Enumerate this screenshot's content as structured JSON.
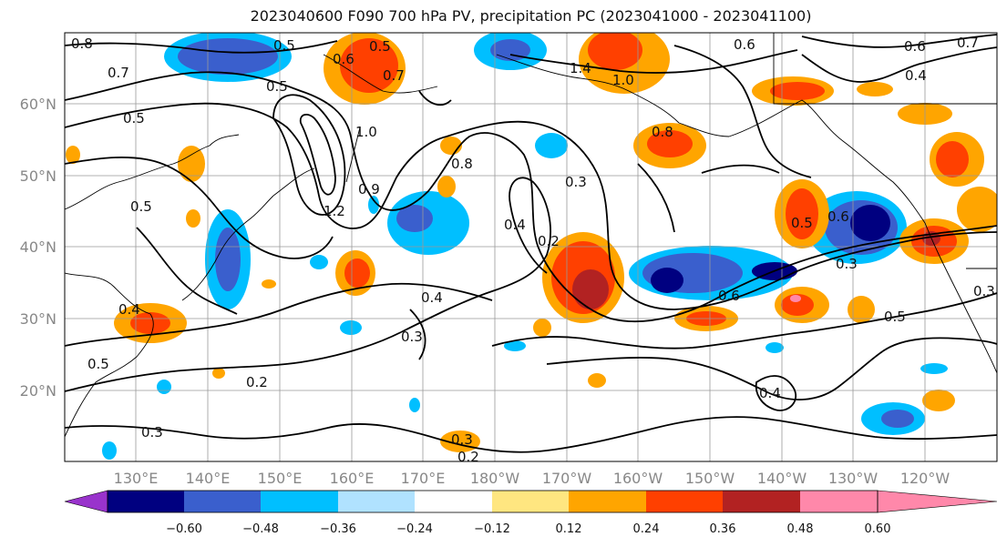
{
  "title": "2023040600 F090 700 hPa PV, precipitation PC (2023041000 - 2023041100)",
  "map": {
    "lat_labels": [
      "60°N",
      "50°N",
      "40°N",
      "30°N",
      "20°N"
    ],
    "lon_labels": [
      "130°E",
      "140°E",
      "150°E",
      "160°E",
      "170°E",
      "180°W",
      "170°W",
      "160°W",
      "150°W",
      "140°W",
      "130°W",
      "120°W"
    ],
    "contour_labels": [
      "0.8",
      "0.7",
      "0.5",
      "0.5",
      "0.6",
      "0.5",
      "0.7",
      "1.4",
      "1.0",
      "0.6",
      "0.6",
      "0.4",
      "0.7",
      "0.5",
      "1.0",
      "0.8",
      "1.2",
      "0.9",
      "0.8",
      "0.4",
      "0.3",
      "0.2",
      "0.5",
      "0.5",
      "0.6",
      "0.6",
      "0.3",
      "0.4",
      "0.3",
      "0.5",
      "0.3",
      "0.5",
      "0.2",
      "0.4",
      "0.3",
      "0.3",
      "0.2",
      "0.4"
    ]
  },
  "colorbar": {
    "ticks": [
      "−0.60",
      "−0.48",
      "−0.36",
      "−0.24",
      "−0.12",
      "0.12",
      "0.24",
      "0.36",
      "0.48",
      "0.60"
    ],
    "colors": [
      "#9933cc",
      "#000080",
      "#3a5fcd",
      "#00bfff",
      "#b0e2ff",
      "#ffffff",
      "#ffe680",
      "#ffa500",
      "#ff4000",
      "#b22222",
      "#ff88aa"
    ]
  }
}
